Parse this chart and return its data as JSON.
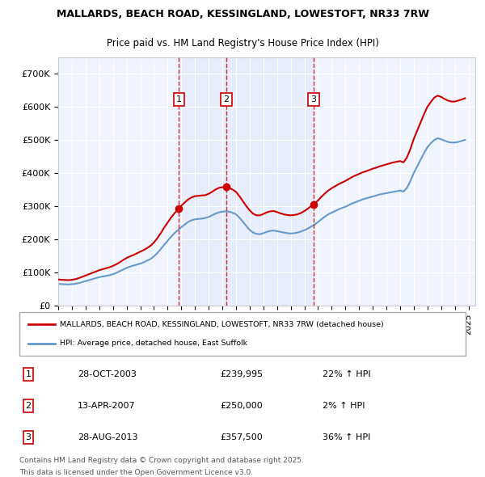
{
  "title": "MALLARDS, BEACH ROAD, KESSINGLAND, LOWESTOFT, NR33 7RW",
  "subtitle": "Price paid vs. HM Land Registry's House Price Index (HPI)",
  "legend_line1": "MALLARDS, BEACH ROAD, KESSINGLAND, LOWESTOFT, NR33 7RW (detached house)",
  "legend_line2": "HPI: Average price, detached house, East Suffolk",
  "footer_line1": "Contains HM Land Registry data © Crown copyright and database right 2025.",
  "footer_line2": "This data is licensed under the Open Government Licence v3.0.",
  "sale_color": "#cc0000",
  "hpi_color": "#6699cc",
  "background_color": "#ddeeff",
  "plot_bg": "#f0f4ff",
  "ylim": [
    0,
    750000
  ],
  "ytick_vals": [
    0,
    100000,
    200000,
    300000,
    400000,
    500000,
    600000,
    700000
  ],
  "ytick_labels": [
    "£0",
    "£100K",
    "£200K",
    "£300K",
    "£400K",
    "£500K",
    "£600K",
    "£700K"
  ],
  "sales": [
    {
      "label": "1",
      "date": "28-OCT-2003",
      "price": 239995,
      "pct": "22%",
      "dir": "↑",
      "x_year": 2003.83
    },
    {
      "label": "2",
      "date": "13-APR-2007",
      "price": 250000,
      "pct": "2%",
      "dir": "↑",
      "x_year": 2007.28
    },
    {
      "label": "3",
      "date": "28-AUG-2013",
      "price": 357500,
      "pct": "36%",
      "dir": "↑",
      "x_year": 2013.66
    }
  ],
  "hpi_data": {
    "years": [
      1995.0,
      1995.25,
      1995.5,
      1995.75,
      1996.0,
      1996.25,
      1996.5,
      1996.75,
      1997.0,
      1997.25,
      1997.5,
      1997.75,
      1998.0,
      1998.25,
      1998.5,
      1998.75,
      1999.0,
      1999.25,
      1999.5,
      1999.75,
      2000.0,
      2000.25,
      2000.5,
      2000.75,
      2001.0,
      2001.25,
      2001.5,
      2001.75,
      2002.0,
      2002.25,
      2002.5,
      2002.75,
      2003.0,
      2003.25,
      2003.5,
      2003.75,
      2004.0,
      2004.25,
      2004.5,
      2004.75,
      2005.0,
      2005.25,
      2005.5,
      2005.75,
      2006.0,
      2006.25,
      2006.5,
      2006.75,
      2007.0,
      2007.25,
      2007.5,
      2007.75,
      2008.0,
      2008.25,
      2008.5,
      2008.75,
      2009.0,
      2009.25,
      2009.5,
      2009.75,
      2010.0,
      2010.25,
      2010.5,
      2010.75,
      2011.0,
      2011.25,
      2011.5,
      2011.75,
      2012.0,
      2012.25,
      2012.5,
      2012.75,
      2013.0,
      2013.25,
      2013.5,
      2013.75,
      2014.0,
      2014.25,
      2014.5,
      2014.75,
      2015.0,
      2015.25,
      2015.5,
      2015.75,
      2016.0,
      2016.25,
      2016.5,
      2016.75,
      2017.0,
      2017.25,
      2017.5,
      2017.75,
      2018.0,
      2018.25,
      2018.5,
      2018.75,
      2019.0,
      2019.25,
      2019.5,
      2019.75,
      2020.0,
      2020.25,
      2020.5,
      2020.75,
      2021.0,
      2021.25,
      2021.5,
      2021.75,
      2022.0,
      2022.25,
      2022.5,
      2022.75,
      2023.0,
      2023.25,
      2023.5,
      2023.75,
      2024.0,
      2024.25,
      2024.5,
      2024.75
    ],
    "values": [
      65000,
      64000,
      63500,
      63000,
      64000,
      65000,
      67000,
      70000,
      73000,
      76000,
      79000,
      82000,
      85000,
      87000,
      89000,
      91000,
      94000,
      98000,
      103000,
      108000,
      113000,
      117000,
      120000,
      123000,
      126000,
      130000,
      135000,
      140000,
      148000,
      158000,
      170000,
      183000,
      195000,
      207000,
      218000,
      227000,
      236000,
      244000,
      252000,
      257000,
      260000,
      261000,
      262000,
      264000,
      267000,
      272000,
      277000,
      281000,
      283000,
      284000,
      283000,
      280000,
      275000,
      265000,
      253000,
      240000,
      228000,
      220000,
      216000,
      215000,
      218000,
      222000,
      225000,
      226000,
      224000,
      222000,
      220000,
      218000,
      217000,
      218000,
      220000,
      223000,
      227000,
      232000,
      238000,
      244000,
      252000,
      260000,
      268000,
      275000,
      280000,
      285000,
      290000,
      294000,
      298000,
      303000,
      308000,
      312000,
      316000,
      320000,
      323000,
      326000,
      329000,
      332000,
      335000,
      337000,
      339000,
      341000,
      343000,
      345000,
      347000,
      344000,
      355000,
      375000,
      400000,
      420000,
      440000,
      460000,
      478000,
      490000,
      500000,
      505000,
      502000,
      498000,
      494000,
      492000,
      492000,
      494000,
      497000,
      500000
    ]
  },
  "property_data": {
    "years": [
      1995.0,
      1995.25,
      1995.5,
      1995.75,
      1996.0,
      1996.25,
      1996.5,
      1996.75,
      1997.0,
      1997.25,
      1997.5,
      1997.75,
      1998.0,
      1998.25,
      1998.5,
      1998.75,
      1999.0,
      1999.25,
      1999.5,
      1999.75,
      2000.0,
      2000.25,
      2000.5,
      2000.75,
      2001.0,
      2001.25,
      2001.5,
      2001.75,
      2002.0,
      2002.25,
      2002.5,
      2002.75,
      2003.0,
      2003.25,
      2003.5,
      2003.75,
      2004.0,
      2004.25,
      2004.5,
      2004.75,
      2005.0,
      2005.25,
      2005.5,
      2005.75,
      2006.0,
      2006.25,
      2006.5,
      2006.75,
      2007.0,
      2007.25,
      2007.5,
      2007.75,
      2008.0,
      2008.25,
      2008.5,
      2008.75,
      2009.0,
      2009.25,
      2009.5,
      2009.75,
      2010.0,
      2010.25,
      2010.5,
      2010.75,
      2011.0,
      2011.25,
      2011.5,
      2011.75,
      2012.0,
      2012.25,
      2012.5,
      2012.75,
      2013.0,
      2013.25,
      2013.5,
      2013.75,
      2014.0,
      2014.25,
      2014.5,
      2014.75,
      2015.0,
      2015.25,
      2015.5,
      2015.75,
      2016.0,
      2016.25,
      2016.5,
      2016.75,
      2017.0,
      2017.25,
      2017.5,
      2017.75,
      2018.0,
      2018.25,
      2018.5,
      2018.75,
      2019.0,
      2019.25,
      2019.5,
      2019.75,
      2020.0,
      2020.25,
      2020.5,
      2020.75,
      2021.0,
      2021.25,
      2021.5,
      2021.75,
      2022.0,
      2022.25,
      2022.5,
      2022.75,
      2023.0,
      2023.25,
      2023.5,
      2023.75,
      2024.0,
      2024.25,
      2024.5,
      2024.75
    ],
    "values": [
      78000,
      77000,
      76500,
      76000,
      77000,
      79000,
      82000,
      86000,
      90000,
      94000,
      98000,
      102000,
      106000,
      109000,
      112000,
      115000,
      119000,
      124000,
      130000,
      137000,
      143000,
      148000,
      152000,
      157000,
      162000,
      167000,
      173000,
      180000,
      190000,
      203000,
      218000,
      235000,
      250000,
      265000,
      278000,
      290000,
      301000,
      311000,
      320000,
      326000,
      330000,
      331000,
      332000,
      333000,
      337000,
      343000,
      350000,
      355000,
      357000,
      358000,
      355000,
      350000,
      343000,
      330000,
      315000,
      300000,
      287000,
      277000,
      272000,
      272000,
      276000,
      281000,
      284000,
      285000,
      282000,
      278000,
      275000,
      273000,
      272000,
      273000,
      275000,
      279000,
      285000,
      292000,
      300000,
      308000,
      317000,
      328000,
      338000,
      347000,
      354000,
      360000,
      366000,
      371000,
      376000,
      382000,
      388000,
      393000,
      397000,
      402000,
      405000,
      409000,
      413000,
      416000,
      420000,
      423000,
      426000,
      429000,
      432000,
      434000,
      436000,
      432000,
      447000,
      472000,
      503000,
      528000,
      553000,
      578000,
      600000,
      615000,
      628000,
      634000,
      630000,
      624000,
      619000,
      616000,
      616000,
      619000,
      622000,
      626000
    ]
  },
  "xlim": [
    1995,
    2025.5
  ],
  "xticks": [
    1995,
    1996,
    1997,
    1998,
    1999,
    2000,
    2001,
    2002,
    2003,
    2004,
    2005,
    2006,
    2007,
    2008,
    2009,
    2010,
    2011,
    2012,
    2013,
    2014,
    2015,
    2016,
    2017,
    2018,
    2019,
    2020,
    2021,
    2022,
    2023,
    2024,
    2025
  ]
}
